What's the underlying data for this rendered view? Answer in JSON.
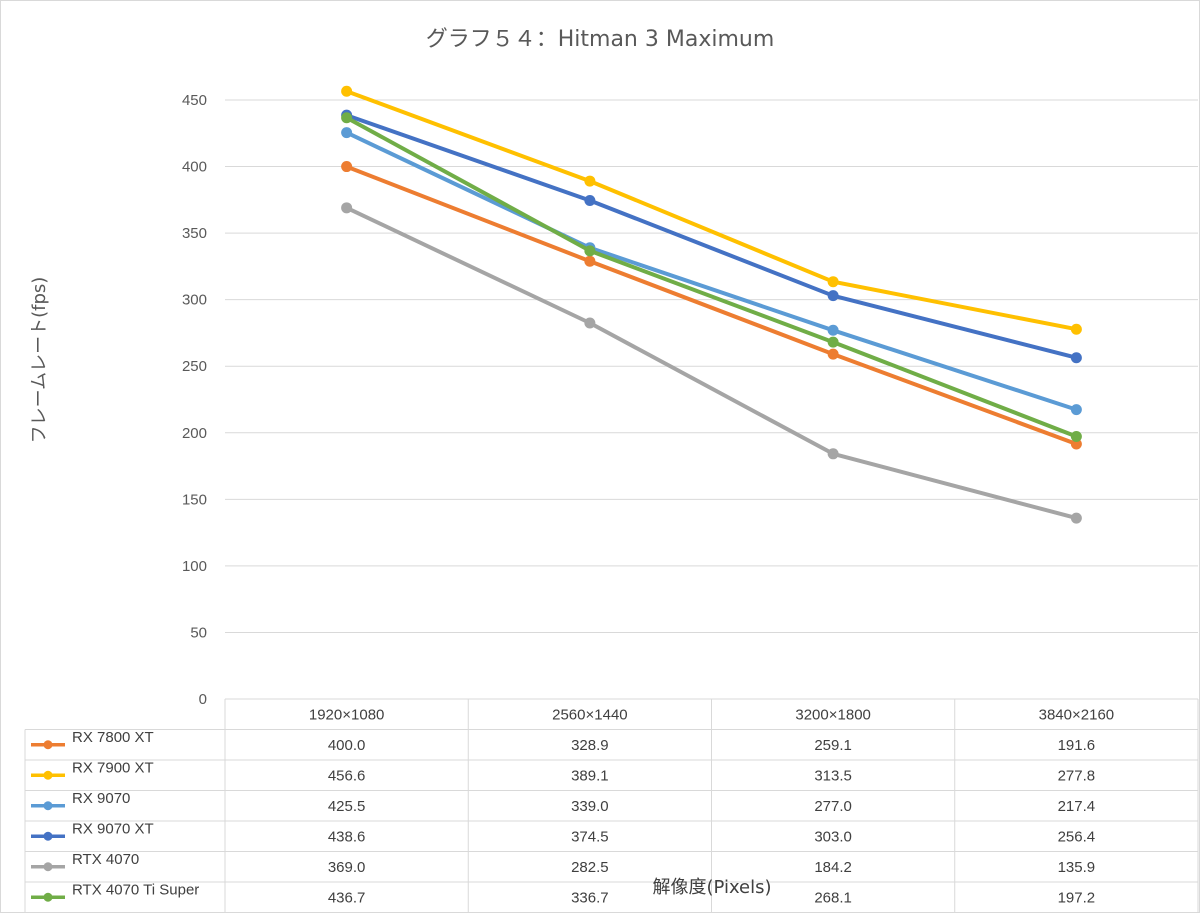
{
  "chart_data": {
    "type": "line",
    "title": "グラフ５４：Hitman 3 Maximum",
    "xlabel": "解像度(Pixels)",
    "ylabel": "フレームレート(fps)",
    "ylim": [
      0,
      450
    ],
    "yticks": [
      0,
      50,
      100,
      150,
      200,
      250,
      300,
      350,
      400,
      450
    ],
    "grid": true,
    "legend": "data-table",
    "categories": [
      "1920×1080",
      "2560×1440",
      "3200×1800",
      "3840×2160"
    ],
    "series": [
      {
        "name": "RX 7800 XT",
        "color": "#ED7D31",
        "values": [
          400.0,
          328.9,
          259.1,
          191.6
        ],
        "labels": [
          "400.0",
          "328.9",
          "259.1",
          "191.6"
        ]
      },
      {
        "name": "RX 7900 XT",
        "color": "#FFC000",
        "values": [
          456.6,
          389.1,
          313.5,
          277.8
        ],
        "labels": [
          "456.6",
          "389.1",
          "313.5",
          "277.8"
        ]
      },
      {
        "name": "RX 9070",
        "color": "#5B9BD5",
        "values": [
          425.5,
          339.0,
          277.0,
          217.4
        ],
        "labels": [
          "425.5",
          "339.0",
          "277.0",
          "217.4"
        ]
      },
      {
        "name": "RX 9070 XT",
        "color": "#4472C4",
        "values": [
          438.6,
          374.5,
          303.0,
          256.4
        ],
        "labels": [
          "438.6",
          "374.5",
          "303.0",
          "256.4"
        ]
      },
      {
        "name": "RTX 4070",
        "color": "#A5A5A5",
        "values": [
          369.0,
          282.5,
          184.2,
          135.9
        ],
        "labels": [
          "369.0",
          "282.5",
          "184.2",
          "135.9"
        ]
      },
      {
        "name": "RTX 4070 Ti Super",
        "color": "#70AD47",
        "values": [
          436.7,
          336.7,
          268.1,
          197.2
        ],
        "labels": [
          "436.7",
          "336.7",
          "268.1",
          "197.2"
        ]
      }
    ]
  }
}
